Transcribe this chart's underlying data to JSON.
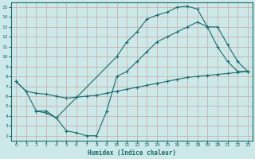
{
  "xlabel": "Humidex (Indice chaleur)",
  "bg_color": "#cce8e8",
  "grid_color": "#b8d8d8",
  "line_color": "#1a6b6b",
  "xlim": [
    -0.5,
    23.5
  ],
  "ylim": [
    1.5,
    15.5
  ],
  "xticks": [
    0,
    1,
    2,
    3,
    4,
    5,
    6,
    7,
    8,
    9,
    10,
    11,
    12,
    13,
    14,
    15,
    16,
    17,
    18,
    19,
    20,
    21,
    22,
    23
  ],
  "yticks": [
    2,
    3,
    4,
    5,
    6,
    7,
    8,
    9,
    10,
    11,
    12,
    13,
    14,
    15
  ],
  "line1_x": [
    0,
    1,
    2,
    3,
    4,
    10,
    11,
    12,
    13,
    14,
    15,
    16,
    17,
    18,
    19,
    20,
    21,
    22,
    23
  ],
  "line1_y": [
    7.5,
    6.5,
    4.5,
    4.3,
    3.8,
    10.0,
    11.5,
    12.5,
    13.8,
    14.2,
    14.5,
    15.0,
    15.1,
    14.8,
    13.0,
    11.0,
    9.5,
    8.5,
    8.5
  ],
  "line2_x": [
    2,
    3,
    4,
    5,
    6,
    7,
    8,
    9,
    10,
    11,
    12,
    13,
    14,
    15,
    16,
    17,
    18,
    19,
    20,
    21,
    22,
    23
  ],
  "line2_y": [
    4.5,
    4.5,
    3.8,
    2.5,
    2.3,
    2.0,
    2.0,
    4.5,
    8.0,
    8.5,
    9.5,
    10.5,
    11.5,
    12.0,
    12.5,
    13.0,
    13.5,
    13.0,
    13.0,
    11.2,
    9.5,
    8.5
  ],
  "line3_x": [
    0,
    1,
    2,
    3,
    4,
    5,
    6,
    7,
    8,
    9,
    10,
    11,
    12,
    13,
    14,
    15,
    16,
    17,
    18,
    19,
    20,
    21,
    22,
    23
  ],
  "line3_y": [
    7.5,
    6.5,
    6.3,
    6.2,
    6.0,
    5.8,
    5.9,
    6.0,
    6.1,
    6.3,
    6.5,
    6.7,
    6.9,
    7.1,
    7.3,
    7.5,
    7.7,
    7.9,
    8.0,
    8.1,
    8.2,
    8.3,
    8.4,
    8.5
  ],
  "markersize": 2.5
}
